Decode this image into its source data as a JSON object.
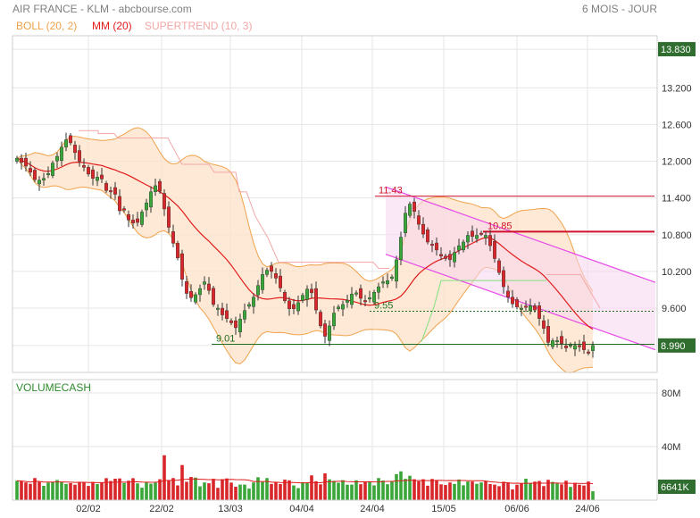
{
  "header": {
    "title": "AIR FRANCE - KLM - abcbourse.com",
    "period": "6 MOIS - JOUR"
  },
  "legend": [
    {
      "label": "BOLL (20, 2)",
      "color": "#f0a24a"
    },
    {
      "label": "MM (20)",
      "color": "#e01b1b"
    },
    {
      "label": "SUPERTREND (10, 3)",
      "color": "#f3a7a7"
    }
  ],
  "volume_label": "VOLUMECASH",
  "price_axis": [
    "13.830",
    "13.200",
    "12.600",
    "12.000",
    "11.400",
    "10.800",
    "10.200",
    "9.600",
    "8.990"
  ],
  "volume_axis": [
    "80M",
    "40M"
  ],
  "volume_last": "6641K",
  "x_labels": [
    "02/02",
    "22/02",
    "13/03",
    "04/04",
    "24/04",
    "15/05",
    "06/06",
    "24/06"
  ],
  "levels": [
    {
      "label": "11.43",
      "value": 11.43,
      "color": "#d0112b"
    },
    {
      "label": "10.85",
      "value": 10.85,
      "color": "#d0112b"
    },
    {
      "label": "9.55",
      "value": 9.55,
      "color": "#1f6f1f"
    },
    {
      "label": "9.01",
      "value": 9.01,
      "color": "#1f6f1f"
    }
  ],
  "chart_data": {
    "type": "candlestick",
    "title": "AIR FRANCE - KLM",
    "ylim": [
      8.55,
      14.05
    ],
    "volume_ylim": [
      0,
      90
    ],
    "last_price": 8.99,
    "bar_count": 130,
    "close": [
      12.05,
      11.98,
      11.92,
      11.82,
      11.7,
      11.69,
      11.72,
      11.8,
      11.97,
      12.08,
      12.23,
      12.35,
      12.3,
      12.14,
      12.0,
      11.9,
      11.79,
      11.72,
      11.74,
      11.71,
      11.52,
      11.5,
      11.46,
      11.19,
      11.2,
      11.04,
      10.99,
      11.0,
      11.17,
      11.32,
      11.5,
      11.6,
      11.51,
      11.22,
      10.92,
      10.66,
      10.42,
      10.07,
      9.84,
      9.77,
      9.82,
      9.92,
      10.03,
      9.89,
      9.66,
      9.6,
      9.49,
      9.43,
      9.36,
      9.28,
      9.42,
      9.56,
      9.66,
      9.78,
      9.97,
      10.15,
      10.22,
      10.2,
      10.09,
      9.93,
      9.72,
      9.59,
      9.59,
      9.69,
      9.81,
      9.91,
      9.85,
      9.57,
      9.31,
      9.14,
      9.31,
      9.52,
      9.62,
      9.66,
      9.73,
      9.83,
      9.85,
      9.76,
      9.72,
      9.77,
      9.86,
      9.95,
      10.03,
      10.05,
      10.11,
      10.39,
      10.76,
      11.15,
      11.3,
      11.18,
      10.97,
      10.81,
      10.68,
      10.63,
      10.55,
      10.45,
      10.41,
      10.39,
      10.51,
      10.62,
      10.68,
      10.79,
      10.77,
      10.79,
      10.82,
      10.79,
      10.62,
      10.41,
      10.18,
      9.95,
      9.78,
      9.67,
      9.62,
      9.6,
      9.63,
      9.64,
      9.57,
      9.43,
      9.27,
      9.04,
      9.07,
      9.07,
      9.02,
      8.95,
      9.0,
      8.99,
      8.98,
      8.92,
      8.87,
      8.99
    ],
    "volume": [
      14.5,
      14.0,
      13.2,
      12.2,
      16.5,
      13.6,
      10.7,
      13.1,
      13.4,
      15.0,
      13.4,
      12.1,
      12.7,
      11.5,
      13.7,
      13.2,
      10.6,
      13.6,
      12.0,
      13.3,
      16.4,
      14.3,
      16.0,
      16.2,
      12.8,
      14.5,
      16.4,
      12.5,
      9.3,
      13.6,
      12.3,
      13.1,
      15.6,
      33.5,
      14.4,
      16.5,
      11.0,
      26.2,
      13.7,
      17.3,
      16.8,
      10.3,
      13.2,
      12.6,
      15.9,
      9.2,
      15.6,
      16.2,
      13.1,
      10.0,
      11.6,
      11.6,
      8.6,
      13.2,
      17.1,
      13.6,
      16.5,
      12.1,
      13.4,
      12.0,
      15.3,
      14.8,
      11.0,
      9.0,
      13.4,
      12.7,
      18.5,
      14.1,
      11.8,
      20.0,
      15.5,
      14.4,
      13.0,
      14.9,
      11.5,
      11.6,
      14.8,
      11.9,
      13.9,
      13.6,
      11.0,
      16.5,
      14.6,
      11.9,
      13.7,
      19.4,
      21.5,
      15.9,
      18.2,
      15.6,
      14.1,
      15.6,
      10.8,
      15.8,
      14.8,
      11.8,
      11.3,
      13.2,
      12.1,
      15.4,
      11.1,
      13.9,
      13.9,
      12.2,
      13.2,
      14.2,
      12.0,
      11.6,
      10.4,
      13.7,
      12.7,
      8.0,
      11.5,
      12.7,
      16.0,
      12.6,
      13.8,
      14.3,
      10.5,
      15.2,
      13.6,
      12.5,
      11.8,
      14.5,
      9.9,
      12.9,
      11.5,
      10.9,
      13.9,
      6.64
    ],
    "x_ticks": [
      "02/02",
      "22/02",
      "13/03",
      "04/04",
      "24/04",
      "15/05",
      "06/06",
      "24/06"
    ]
  }
}
